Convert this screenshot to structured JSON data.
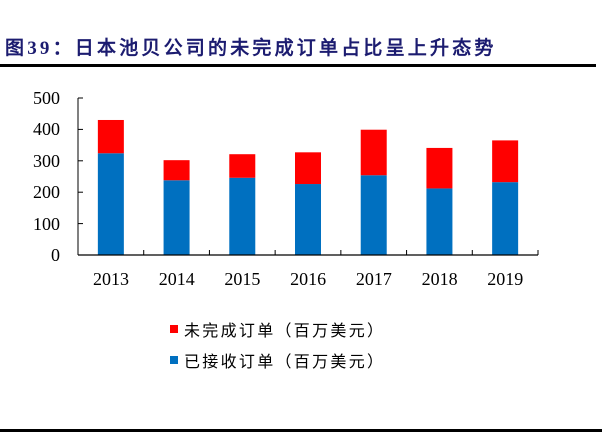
{
  "figure": {
    "title": "图39：日本池贝公司的未完成订单占比呈上升态势"
  },
  "chart_data": {
    "type": "bar",
    "stacked": true,
    "title": "图39：日本池贝公司的未完成订单占比呈上升态势",
    "xlabel": "",
    "ylabel": "",
    "categories": [
      "2013",
      "2014",
      "2015",
      "2016",
      "2017",
      "2018",
      "2019"
    ],
    "series": [
      {
        "name": "已接收订单（百万美元）",
        "color": "#0070C0",
        "values": [
          324,
          238,
          246,
          226,
          254,
          212,
          232
        ]
      },
      {
        "name": "未完成订单（百万美元）",
        "color": "#FF0000",
        "values": [
          106,
          64,
          75,
          101,
          145,
          129,
          133
        ]
      }
    ],
    "totals": [
      430,
      302,
      321,
      327,
      399,
      341,
      365
    ],
    "ylim": [
      0,
      500
    ],
    "yticks": [
      "0",
      "100",
      "200",
      "300",
      "400",
      "500"
    ],
    "grid": false,
    "legend_position": "bottom"
  },
  "legend": {
    "items": [
      {
        "label": "未完成订单（百万美元）",
        "color": "#FF0000"
      },
      {
        "label": "已接收订单（百万美元）",
        "color": "#0070C0"
      }
    ]
  }
}
